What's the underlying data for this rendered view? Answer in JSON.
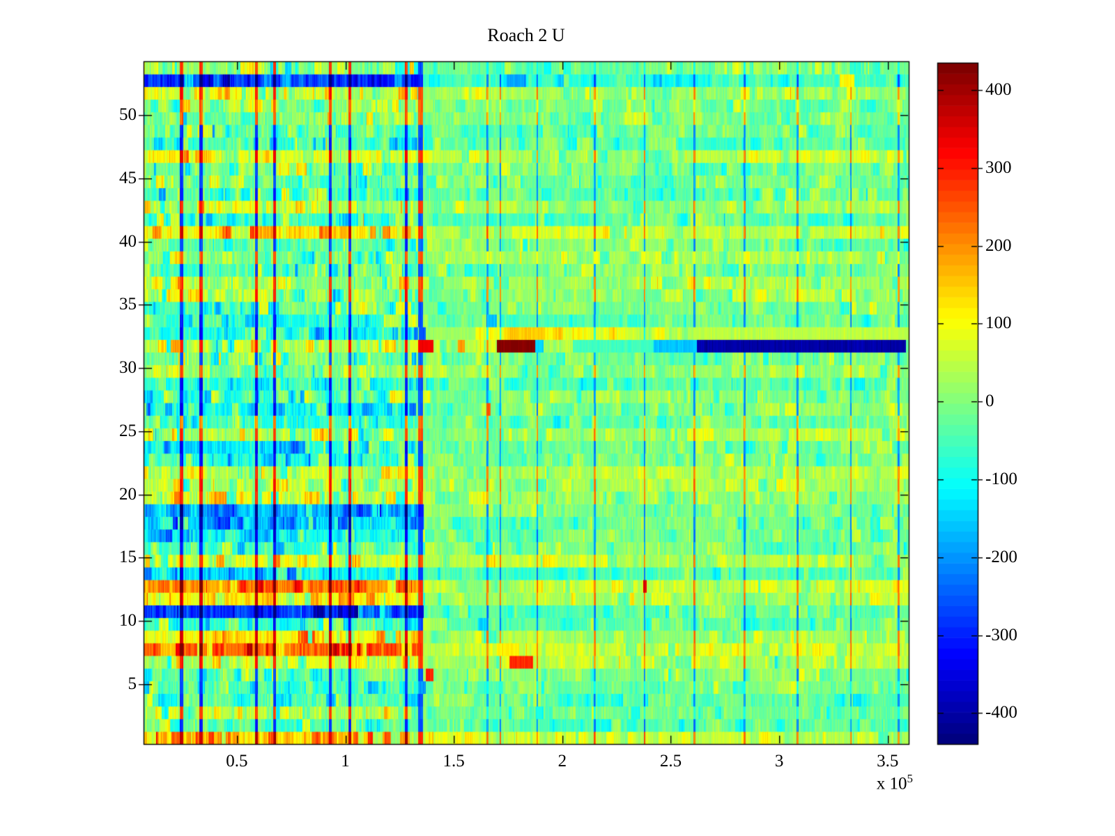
{
  "title": "Roach 2 U",
  "chart_data": {
    "type": "heatmap",
    "title": "Roach 2 U",
    "x_axis": {
      "unit_multiplier_text": "x 10",
      "unit_exponent": "5",
      "range_1e5": [
        0.07,
        3.597
      ],
      "ticks_1e5": [
        0.5,
        1,
        1.5,
        2,
        2.5,
        3,
        3.5
      ],
      "tick_labels": [
        "0.5",
        "1",
        "1.5",
        "2",
        "2.5",
        "3",
        "3.5"
      ]
    },
    "y_axis": {
      "n_rows": 54,
      "ticks": [
        5,
        10,
        15,
        20,
        25,
        30,
        35,
        40,
        45,
        50
      ],
      "tick_labels": [
        "5",
        "10",
        "15",
        "20",
        "25",
        "30",
        "35",
        "40",
        "45",
        "50"
      ]
    },
    "colorbar": {
      "colormap": "jet",
      "levels": 64,
      "clim": [
        -440,
        435
      ],
      "ticks": [
        400,
        300,
        200,
        100,
        0,
        -100,
        -200,
        -300,
        -400
      ],
      "tick_labels": [
        "400",
        "300",
        "200",
        "100",
        "0",
        "-100",
        "-200",
        "-300",
        "-400"
      ]
    },
    "transition_x_1e5": 1.335,
    "rows_format": "[row(1=bottom), left_mean, right_mean, stripe_polarity(+1 red stripes / -1 blue stripes / 0 faint)]",
    "rows": [
      [
        1,
        130,
        50,
        1
      ],
      [
        2,
        -45,
        -25,
        -1
      ],
      [
        3,
        25,
        -5,
        0
      ],
      [
        4,
        -45,
        -25,
        -1
      ],
      [
        5,
        -35,
        -15,
        0
      ],
      [
        6,
        -25,
        -10,
        -1
      ],
      [
        7,
        60,
        25,
        1
      ],
      [
        8,
        245,
        45,
        1
      ],
      [
        9,
        90,
        35,
        1
      ],
      [
        10,
        -60,
        -25,
        -1
      ],
      [
        11,
        -255,
        -35,
        -1
      ],
      [
        12,
        110,
        40,
        1
      ],
      [
        13,
        225,
        50,
        1
      ],
      [
        14,
        -120,
        -30,
        -1
      ],
      [
        15,
        55,
        25,
        1
      ],
      [
        16,
        -40,
        -15,
        -1
      ],
      [
        17,
        -100,
        -25,
        -1
      ],
      [
        18,
        -140,
        -20,
        -1
      ],
      [
        19,
        -200,
        -15,
        -1
      ],
      [
        20,
        45,
        20,
        1
      ],
      [
        21,
        60,
        30,
        1
      ],
      [
        22,
        40,
        20,
        1
      ],
      [
        23,
        -70,
        -20,
        -1
      ],
      [
        24,
        -90,
        -25,
        -1
      ],
      [
        25,
        30,
        15,
        1
      ],
      [
        26,
        -50,
        -15,
        1
      ],
      [
        27,
        -95,
        -10,
        -1
      ],
      [
        28,
        -40,
        -10,
        -1
      ],
      [
        29,
        -75,
        -20,
        -1
      ],
      [
        30,
        15,
        10,
        1
      ],
      [
        31,
        -15,
        0,
        -1
      ],
      [
        32,
        55,
        25,
        1
      ],
      [
        33,
        -85,
        95,
        -1
      ],
      [
        34,
        -55,
        -20,
        -1
      ],
      [
        35,
        -20,
        -10,
        -1
      ],
      [
        36,
        45,
        15,
        1
      ],
      [
        37,
        35,
        20,
        1
      ],
      [
        38,
        -35,
        -15,
        -1
      ],
      [
        39,
        0,
        5,
        0
      ],
      [
        40,
        -25,
        -5,
        -1
      ],
      [
        41,
        110,
        45,
        1
      ],
      [
        42,
        -45,
        -15,
        -1
      ],
      [
        43,
        50,
        25,
        1
      ],
      [
        44,
        -55,
        -20,
        -1
      ],
      [
        45,
        -20,
        -5,
        -1
      ],
      [
        46,
        -30,
        -10,
        -1
      ],
      [
        47,
        95,
        40,
        1
      ],
      [
        48,
        -70,
        -30,
        -1
      ],
      [
        49,
        -40,
        -15,
        -1
      ],
      [
        50,
        -10,
        -10,
        1
      ],
      [
        51,
        0,
        5,
        0
      ],
      [
        52,
        60,
        25,
        1
      ],
      [
        53,
        -280,
        -60,
        -1
      ],
      [
        54,
        30,
        -20,
        0
      ]
    ],
    "left_stripes_x_1e5": [
      0.245,
      0.335,
      0.59,
      0.675,
      0.93,
      1.02,
      1.28
    ],
    "right_stripes_x_1e5": [
      1.655,
      1.715,
      1.885,
      2.15,
      2.38,
      2.61,
      2.84,
      3.085,
      3.33,
      3.55
    ],
    "anomalies_format": "[row, x0_1e5, x1_1e5, value]",
    "anomalies": [
      [
        32,
        1.335,
        1.405,
        330
      ],
      [
        32,
        1.52,
        1.55,
        185
      ],
      [
        32,
        1.7,
        1.875,
        430
      ],
      [
        32,
        1.875,
        1.915,
        -150
      ],
      [
        32,
        2.05,
        2.42,
        -55
      ],
      [
        32,
        2.42,
        2.62,
        -160
      ],
      [
        32,
        2.62,
        3.585,
        -400
      ],
      [
        33,
        1.335,
        1.6,
        25
      ],
      [
        33,
        1.34,
        1.372,
        -245
      ],
      [
        33,
        1.75,
        1.92,
        150
      ],
      [
        33,
        2.58,
        3.597,
        50
      ],
      [
        7,
        1.755,
        1.865,
        285
      ],
      [
        8,
        1.7,
        1.8,
        120
      ],
      [
        6,
        1.37,
        1.405,
        295
      ],
      [
        5,
        1.335,
        1.37,
        -200
      ],
      [
        53,
        1.745,
        1.835,
        -185
      ],
      [
        53,
        3.28,
        3.345,
        110
      ],
      [
        13,
        2.372,
        2.39,
        355
      ],
      [
        11,
        1.335,
        1.362,
        -360
      ],
      [
        18,
        1.335,
        1.362,
        -280
      ],
      [
        19,
        1.335,
        1.362,
        -310
      ],
      [
        34,
        1.655,
        1.7,
        -160
      ],
      [
        27,
        1.652,
        1.67,
        240
      ]
    ],
    "noise": {
      "seed": 1337,
      "left_amp": 42,
      "right_amp": 26
    }
  }
}
